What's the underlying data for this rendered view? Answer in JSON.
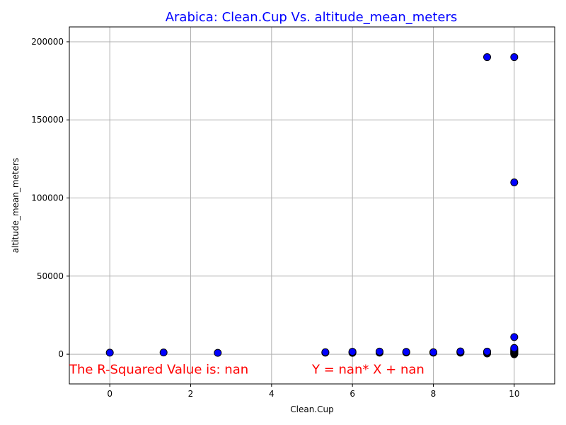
{
  "chart_data": {
    "type": "scatter",
    "title": "Arabica: Clean.Cup Vs. altitude_mean_meters",
    "xlabel": "Clean.Cup",
    "ylabel": "altitude_mean_meters",
    "xlim": [
      -1,
      11
    ],
    "ylim": [
      -19000,
      209500
    ],
    "xticks": [
      0,
      2,
      4,
      6,
      8,
      10
    ],
    "yticks": [
      0,
      50000,
      100000,
      150000,
      200000
    ],
    "grid": true,
    "colors": {
      "title": "#0000ff",
      "marker_fill": "#0000ff",
      "marker_edge": "#000000",
      "annotation": "#ff0000",
      "grid": "#b0b0b0"
    },
    "annotations": [
      {
        "text": "The R-Squared Value is: nan",
        "x": -1.0,
        "y": -12500
      },
      {
        "text": "Y = nan* X + nan",
        "x": 5.0,
        "y": -12500
      }
    ],
    "series": [
      {
        "name": "Arabica",
        "points": [
          [
            0,
            1000
          ],
          [
            1.33,
            1100
          ],
          [
            2.67,
            900
          ],
          [
            5.33,
            1000
          ],
          [
            5.33,
            1300
          ],
          [
            6,
            900
          ],
          [
            6,
            1200
          ],
          [
            6,
            1600
          ],
          [
            6.67,
            1000
          ],
          [
            6.67,
            1400
          ],
          [
            6.67,
            1700
          ],
          [
            7.33,
            1100
          ],
          [
            7.33,
            1500
          ],
          [
            8,
            1000
          ],
          [
            8,
            1300
          ],
          [
            8.67,
            1000
          ],
          [
            8.67,
            1400
          ],
          [
            8.67,
            1800
          ],
          [
            9.33,
            500
          ],
          [
            9.33,
            1000
          ],
          [
            9.33,
            1300
          ],
          [
            9.33,
            1700
          ],
          [
            9.33,
            190164
          ],
          [
            10,
            0
          ],
          [
            10,
            300
          ],
          [
            10,
            600
          ],
          [
            10,
            900
          ],
          [
            10,
            1200
          ],
          [
            10,
            1500
          ],
          [
            10,
            1800
          ],
          [
            10,
            2200
          ],
          [
            10,
            2600
          ],
          [
            10,
            3000
          ],
          [
            10,
            3500
          ],
          [
            10,
            4000
          ],
          [
            10,
            11000
          ],
          [
            10,
            110000
          ],
          [
            10,
            190164
          ]
        ]
      }
    ]
  }
}
